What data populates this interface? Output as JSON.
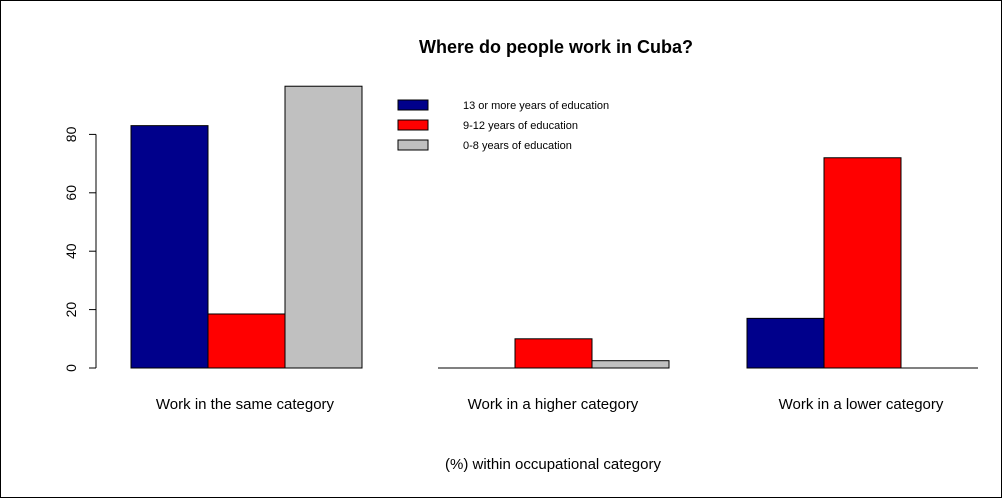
{
  "chart_data": {
    "type": "bar",
    "title": "Where do people work in Cuba?",
    "xlabel": "(%) within occupational category",
    "ylabel": "",
    "categories": [
      "Work in the same category",
      "Work in a higher category",
      "Work in a lower category"
    ],
    "series": [
      {
        "name": "13 or more years of education",
        "color": "#00008b",
        "values": [
          83,
          0,
          17
        ]
      },
      {
        "name": "9-12 years of education",
        "color": "#ff0000",
        "values": [
          18.5,
          10,
          72
        ]
      },
      {
        "name": "0-8 years of education",
        "color": "#c0c0c0",
        "values": [
          96.5,
          2.5,
          0
        ]
      }
    ],
    "ylim": [
      0,
      100
    ],
    "yticks": [
      0,
      20,
      40,
      60,
      80
    ],
    "legend_position": "top-center",
    "grid": false
  }
}
